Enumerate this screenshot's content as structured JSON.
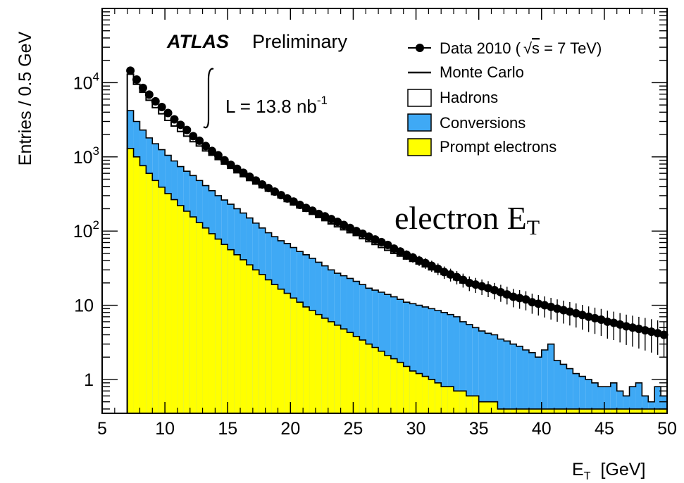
{
  "chart_data": {
    "type": "bar",
    "xlabel": "E",
    "xlabel_sub": "T",
    "xlabel_unit": "[GeV]",
    "ylabel": "Entries / 0.5 GeV",
    "xlim": [
      5,
      50
    ],
    "ylim": [
      0.35,
      100000
    ],
    "log_y": true,
    "x_ticks": [
      "5",
      "10",
      "15",
      "20",
      "25",
      "30",
      "35",
      "40",
      "45",
      "50"
    ],
    "y_ticks": [
      {
        "value": 1,
        "base": "1",
        "exp": ""
      },
      {
        "value": 10,
        "base": "10",
        "exp": ""
      },
      {
        "value": 100,
        "base": "10",
        "exp": "2"
      },
      {
        "value": 1000,
        "base": "10",
        "exp": "3"
      },
      {
        "value": 10000,
        "base": "10",
        "exp": "4"
      }
    ],
    "experiment_label": "ATLAS",
    "status_label": "Preliminary",
    "luminosity_label": "L = 13.8 nb",
    "luminosity_exp": "-1",
    "annotation": "electron E",
    "annotation_sub": "T",
    "colors": {
      "conversions": "#3fa9f5",
      "prompt": "#ffff00",
      "frame": "#000000"
    },
    "legend": {
      "position": "top-right",
      "entries": [
        {
          "key": "data",
          "label_main": "Data 2010 (",
          "label_sqrt": "s",
          "label_rest": " = 7 TeV)",
          "style": "marker"
        },
        {
          "key": "mc",
          "label": "Monte Carlo",
          "style": "line"
        },
        {
          "key": "hadrons",
          "label": "Hadrons",
          "style": "box",
          "color": "#ffffff"
        },
        {
          "key": "conversions",
          "label": "Conversions",
          "style": "box",
          "color": "#3fa9f5"
        },
        {
          "key": "prompt",
          "label": "Prompt electrons",
          "style": "box",
          "color": "#ffff00"
        }
      ]
    },
    "bin_edges_start": 7,
    "bin_width": 0.5,
    "series": [
      {
        "key": "mc_total",
        "values": [
          13000,
          9500,
          7400,
          5800,
          4600,
          3800,
          3100,
          2600,
          2200,
          1900,
          1600,
          1400,
          1200,
          1050,
          920,
          800,
          700,
          610,
          540,
          480,
          430,
          385,
          345,
          310,
          280,
          250,
          225,
          205,
          185,
          168,
          152,
          138,
          125,
          114,
          104,
          95,
          87,
          79,
          72,
          66,
          60,
          55,
          50,
          46,
          42,
          39,
          36,
          33,
          30,
          28,
          26,
          24,
          22,
          20,
          19,
          18,
          17,
          16,
          15,
          14,
          13,
          12.5,
          12,
          11.5,
          11,
          10.5,
          10,
          9.5,
          9,
          8.6,
          8.2,
          7.8,
          7.4,
          7.0,
          6.7,
          6.4,
          6.1,
          5.8,
          5.5,
          5.2,
          5.0,
          4.8,
          4.6,
          4.4,
          4.2,
          4.0
        ]
      },
      {
        "key": "conversions",
        "values": [
          4200,
          3000,
          2300,
          1800,
          1500,
          1250,
          1050,
          880,
          740,
          640,
          560,
          480,
          410,
          350,
          300,
          262,
          230,
          200,
          175,
          150,
          128,
          110,
          95,
          84,
          74,
          68,
          60,
          53,
          48,
          43,
          38,
          34,
          30,
          27,
          25,
          23,
          21,
          19,
          17,
          16,
          15,
          14,
          13,
          12,
          11,
          10.5,
          10,
          9.5,
          9,
          8.5,
          8,
          7.5,
          7,
          6,
          5.5,
          5,
          4.5,
          4.2,
          4,
          3.5,
          3.3,
          3,
          2.8,
          2.5,
          2.3,
          2,
          2.5,
          3,
          1.8,
          1.6,
          1.4,
          1.2,
          1.1,
          1.0,
          0.9,
          0.8,
          0.8,
          0.9,
          0.7,
          0.6,
          0.8,
          0.9,
          0.6,
          0.5,
          0.8,
          0.6
        ]
      },
      {
        "key": "prompt",
        "values": [
          1300,
          1000,
          760,
          600,
          480,
          390,
          320,
          265,
          220,
          185,
          155,
          130,
          110,
          92,
          78,
          66,
          56,
          48,
          41,
          35,
          30,
          26,
          22,
          19,
          16.5,
          14.5,
          12.5,
          11,
          9.5,
          8.5,
          7.5,
          6.7,
          6,
          5.4,
          4.8,
          4.3,
          3.8,
          3.4,
          3,
          2.7,
          2.4,
          2.1,
          1.9,
          1.7,
          1.5,
          1.3,
          1.2,
          1.1,
          1.0,
          0.9,
          0.8,
          0.8,
          0.7,
          0.7,
          0.6,
          0.6,
          0.5,
          0.5,
          0.5,
          0.4,
          0.4,
          0.4,
          0.4,
          0.4,
          0.4,
          0.4,
          0.4,
          0.4,
          0.4,
          0.4,
          0.4,
          0.4,
          0.4,
          0.4,
          0.4,
          0.4,
          0.4,
          0.4,
          0.4,
          0.4,
          0.4,
          0.4,
          0.4,
          0.4,
          0.4,
          0.4
        ]
      },
      {
        "key": "data",
        "values": [
          14500,
          11000,
          8500,
          6900,
          5600,
          4700,
          3900,
          3200,
          2700,
          2300,
          1900,
          1650,
          1400,
          1200,
          1050,
          900,
          780,
          690,
          610,
          540,
          480,
          425,
          380,
          340,
          305,
          275,
          250,
          225,
          205,
          188,
          170,
          158,
          145,
          133,
          121,
          110,
          100,
          92,
          84,
          77,
          71,
          65,
          58,
          53,
          48,
          44,
          40,
          37,
          34,
          31,
          28,
          26,
          24,
          22,
          20,
          19,
          18,
          17,
          16,
          15,
          14,
          13,
          12.5,
          12,
          11,
          10.5,
          10,
          9.5,
          9,
          8.6,
          8.2,
          7.8,
          7.4,
          7,
          6.7,
          6.4,
          6,
          5.8,
          5.5,
          5.2,
          5,
          4.8,
          4.6,
          4.4,
          4.2,
          4
        ]
      }
    ]
  }
}
